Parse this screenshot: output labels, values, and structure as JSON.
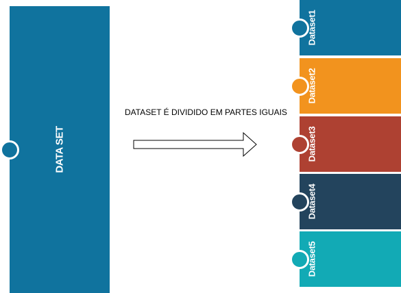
{
  "main": {
    "label": "DATA SET",
    "color": "#10739e"
  },
  "caption": "DATASET É DIVIDIDO EM PARTES IGUAIS",
  "parts": [
    {
      "label": "Dataset1",
      "color": "#10739e",
      "dot": "#10739e"
    },
    {
      "label": "Dataset2",
      "color": "#f2931e",
      "dot": "#f2931e"
    },
    {
      "label": "Dataset3",
      "color": "#ae4132",
      "dot": "#ae4132"
    },
    {
      "label": "Dataset4",
      "color": "#23445d",
      "dot": "#23445d"
    },
    {
      "label": "Dataset5",
      "color": "#12aab5",
      "dot": "#12aab5"
    }
  ]
}
